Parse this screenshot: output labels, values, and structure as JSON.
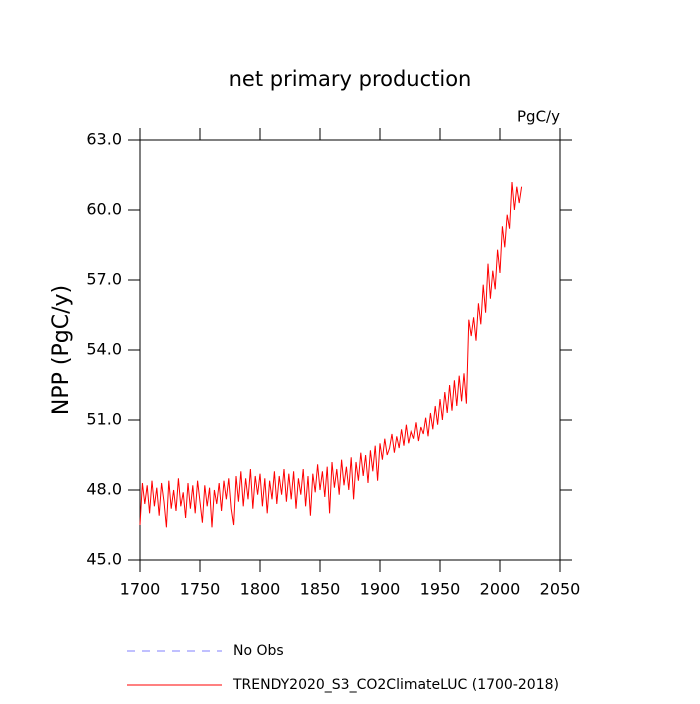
{
  "chart_data": {
    "type": "line",
    "title": "net primary production",
    "subtitle": "PgC/y",
    "y_label": "NPP  (PgC/y)",
    "x": [
      1700,
      1702,
      1704,
      1706,
      1708,
      1710,
      1712,
      1714,
      1716,
      1718,
      1720,
      1722,
      1724,
      1726,
      1728,
      1730,
      1732,
      1734,
      1736,
      1738,
      1740,
      1742,
      1744,
      1746,
      1748,
      1750,
      1752,
      1754,
      1756,
      1758,
      1760,
      1762,
      1764,
      1766,
      1768,
      1770,
      1772,
      1774,
      1776,
      1778,
      1780,
      1782,
      1784,
      1786,
      1788,
      1790,
      1792,
      1794,
      1796,
      1798,
      1800,
      1802,
      1804,
      1806,
      1808,
      1810,
      1812,
      1814,
      1816,
      1818,
      1820,
      1822,
      1824,
      1826,
      1828,
      1830,
      1832,
      1834,
      1836,
      1838,
      1840,
      1842,
      1844,
      1846,
      1848,
      1850,
      1852,
      1854,
      1856,
      1858,
      1860,
      1862,
      1864,
      1866,
      1868,
      1870,
      1872,
      1874,
      1876,
      1878,
      1880,
      1882,
      1884,
      1886,
      1888,
      1890,
      1892,
      1894,
      1896,
      1898,
      1900,
      1902,
      1904,
      1906,
      1908,
      1910,
      1912,
      1914,
      1916,
      1918,
      1920,
      1922,
      1924,
      1926,
      1928,
      1930,
      1932,
      1934,
      1936,
      1938,
      1940,
      1942,
      1944,
      1946,
      1948,
      1950,
      1952,
      1954,
      1956,
      1958,
      1960,
      1962,
      1964,
      1966,
      1968,
      1970,
      1972,
      1974,
      1976,
      1978,
      1980,
      1982,
      1984,
      1986,
      1988,
      1990,
      1992,
      1994,
      1996,
      1998,
      2000,
      2002,
      2004,
      2006,
      2008,
      2010,
      2012,
      2014,
      2016,
      2018
    ],
    "series": [
      {
        "name": "TRENDY2020_S3_CO2ClimateLUC (1700-2018)",
        "color": "#ff0000",
        "values": [
          46.5,
          48.3,
          47.4,
          48.2,
          47.0,
          48.4,
          47.3,
          48.1,
          46.9,
          48.3,
          47.5,
          46.4,
          48.4,
          47.2,
          48.0,
          47.1,
          48.5,
          47.3,
          47.9,
          46.8,
          48.3,
          47.2,
          48.2,
          47.0,
          48.4,
          47.5,
          46.6,
          48.2,
          47.3,
          48.1,
          46.4,
          48.0,
          47.4,
          48.3,
          47.1,
          48.4,
          47.6,
          48.5,
          47.2,
          46.5,
          48.6,
          47.5,
          48.8,
          47.3,
          48.5,
          47.6,
          48.9,
          47.2,
          48.6,
          47.8,
          48.7,
          47.3,
          48.5,
          47.0,
          48.4,
          47.6,
          48.8,
          47.4,
          48.6,
          47.8,
          48.9,
          47.5,
          48.7,
          47.6,
          48.8,
          47.2,
          48.5,
          47.8,
          48.9,
          47.3,
          48.6,
          46.9,
          48.7,
          47.9,
          49.1,
          48.0,
          48.8,
          47.7,
          49.0,
          47.0,
          49.2,
          48.1,
          48.9,
          47.8,
          49.3,
          48.2,
          49.0,
          48.0,
          49.4,
          47.6,
          49.2,
          48.4,
          49.6,
          48.6,
          49.5,
          48.3,
          49.7,
          48.8,
          49.9,
          48.4,
          50.0,
          49.3,
          50.2,
          49.5,
          49.8,
          50.4,
          49.6,
          50.3,
          49.8,
          50.6,
          49.9,
          50.8,
          50.0,
          50.5,
          50.2,
          50.9,
          50.1,
          50.7,
          50.4,
          51.1,
          50.3,
          51.3,
          50.6,
          51.6,
          50.8,
          51.9,
          51.0,
          52.2,
          51.3,
          52.5,
          51.4,
          52.7,
          51.6,
          52.9,
          51.8,
          53.0,
          51.7,
          55.3,
          54.6,
          55.4,
          54.4,
          56.0,
          55.1,
          56.8,
          55.6,
          57.7,
          56.2,
          57.4,
          56.6,
          58.3,
          57.3,
          59.3,
          58.4,
          59.8,
          59.2,
          61.2,
          60.0,
          61.0,
          60.3,
          61.0
        ]
      }
    ],
    "reference": {
      "name": "No Obs",
      "color": "#8080ff",
      "dash": "8 7"
    },
    "xlim": [
      1700,
      2050
    ],
    "xticks": [
      1700,
      1750,
      1800,
      1850,
      1900,
      1950,
      2000,
      2050
    ],
    "ylim": [
      45,
      63
    ],
    "yticks": [
      {
        "value": 45,
        "label": "45.0"
      },
      {
        "value": 48,
        "label": "48.0"
      },
      {
        "value": 51,
        "label": "51.0"
      },
      {
        "value": 54,
        "label": "54.0"
      },
      {
        "value": 57,
        "label": "57.0"
      },
      {
        "value": 60,
        "label": "60.0"
      },
      {
        "value": 63,
        "label": "63.0"
      }
    ]
  }
}
